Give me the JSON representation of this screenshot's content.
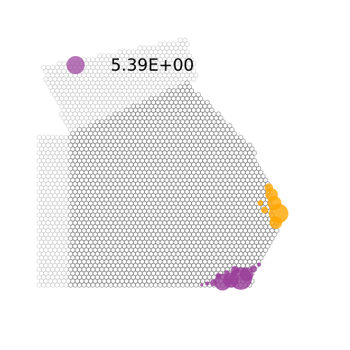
{
  "chart_data": {
    "type": "spatial",
    "legend": {
      "entries": [
        {
          "name": "5.39E+00",
          "color": "#9a3d9a"
        }
      ]
    }
  }
}
